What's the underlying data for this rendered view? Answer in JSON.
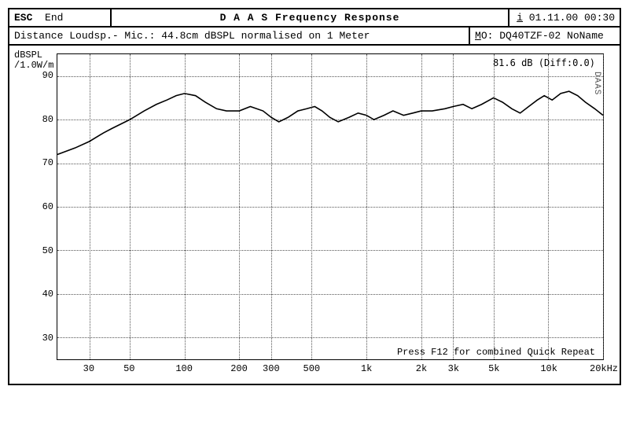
{
  "header": {
    "esc_key": "ESC",
    "esc_label": "End",
    "title": "D A A S   Frequency Response",
    "ts_prefix": "i",
    "timestamp": "01.11.00 00:30"
  },
  "info": {
    "left": "Distance Loudsp.- Mic.: 44.8cm dBSPL normalised on 1 Meter",
    "right_prefix": "M",
    "right": "O: DQ40TZF-02 NoName"
  },
  "chart": {
    "type": "line",
    "ylabel_line1": "dBSPL",
    "ylabel_line2": "/1.0W/m",
    "readout": "81.6 dB (Diff:0.0)",
    "watermark": "DAAS",
    "footer": "Press F12 for combined Quick Repeat",
    "x_scale": "log",
    "x_min_hz": 20,
    "x_max_hz": 20000,
    "y_min_db": 25,
    "y_max_db": 95,
    "x_ticks": [
      {
        "hz": 30,
        "label": "30"
      },
      {
        "hz": 50,
        "label": "50"
      },
      {
        "hz": 100,
        "label": "100"
      },
      {
        "hz": 200,
        "label": "200"
      },
      {
        "hz": 300,
        "label": "300"
      },
      {
        "hz": 500,
        "label": "500"
      },
      {
        "hz": 1000,
        "label": "1k"
      },
      {
        "hz": 2000,
        "label": "2k"
      },
      {
        "hz": 3000,
        "label": "3k"
      },
      {
        "hz": 5000,
        "label": "5k"
      },
      {
        "hz": 10000,
        "label": "10k"
      },
      {
        "hz": 20000,
        "label": "20kHz"
      }
    ],
    "y_ticks": [
      30,
      40,
      50,
      60,
      70,
      80,
      90
    ],
    "grid_color": "#555555",
    "line_color": "#000000",
    "line_width": 1.6,
    "background_color": "#ffffff",
    "series": [
      {
        "hz": 20,
        "db": 72
      },
      {
        "hz": 25,
        "db": 73.5
      },
      {
        "hz": 30,
        "db": 75
      },
      {
        "hz": 36,
        "db": 77
      },
      {
        "hz": 40,
        "db": 78
      },
      {
        "hz": 50,
        "db": 80
      },
      {
        "hz": 60,
        "db": 82
      },
      {
        "hz": 70,
        "db": 83.5
      },
      {
        "hz": 80,
        "db": 84.5
      },
      {
        "hz": 90,
        "db": 85.5
      },
      {
        "hz": 100,
        "db": 86
      },
      {
        "hz": 115,
        "db": 85.5
      },
      {
        "hz": 130,
        "db": 84
      },
      {
        "hz": 150,
        "db": 82.5
      },
      {
        "hz": 170,
        "db": 82
      },
      {
        "hz": 200,
        "db": 82
      },
      {
        "hz": 230,
        "db": 83
      },
      {
        "hz": 270,
        "db": 82
      },
      {
        "hz": 300,
        "db": 80.5
      },
      {
        "hz": 330,
        "db": 79.5
      },
      {
        "hz": 370,
        "db": 80.5
      },
      {
        "hz": 420,
        "db": 82
      },
      {
        "hz": 470,
        "db": 82.5
      },
      {
        "hz": 520,
        "db": 83
      },
      {
        "hz": 570,
        "db": 82
      },
      {
        "hz": 630,
        "db": 80.5
      },
      {
        "hz": 700,
        "db": 79.5
      },
      {
        "hz": 800,
        "db": 80.5
      },
      {
        "hz": 900,
        "db": 81.5
      },
      {
        "hz": 1000,
        "db": 81
      },
      {
        "hz": 1100,
        "db": 80
      },
      {
        "hz": 1250,
        "db": 81
      },
      {
        "hz": 1400,
        "db": 82
      },
      {
        "hz": 1600,
        "db": 81
      },
      {
        "hz": 1800,
        "db": 81.5
      },
      {
        "hz": 2000,
        "db": 82
      },
      {
        "hz": 2300,
        "db": 82
      },
      {
        "hz": 2700,
        "db": 82.5
      },
      {
        "hz": 3000,
        "db": 83
      },
      {
        "hz": 3400,
        "db": 83.5
      },
      {
        "hz": 3800,
        "db": 82.5
      },
      {
        "hz": 4300,
        "db": 83.5
      },
      {
        "hz": 5000,
        "db": 85
      },
      {
        "hz": 5600,
        "db": 84
      },
      {
        "hz": 6300,
        "db": 82.5
      },
      {
        "hz": 7000,
        "db": 81.5
      },
      {
        "hz": 7800,
        "db": 83
      },
      {
        "hz": 8700,
        "db": 84.5
      },
      {
        "hz": 9500,
        "db": 85.5
      },
      {
        "hz": 10500,
        "db": 84.5
      },
      {
        "hz": 11700,
        "db": 86
      },
      {
        "hz": 13000,
        "db": 86.5
      },
      {
        "hz": 14500,
        "db": 85.5
      },
      {
        "hz": 16000,
        "db": 84
      },
      {
        "hz": 18000,
        "db": 82.5
      },
      {
        "hz": 20000,
        "db": 81
      }
    ]
  }
}
